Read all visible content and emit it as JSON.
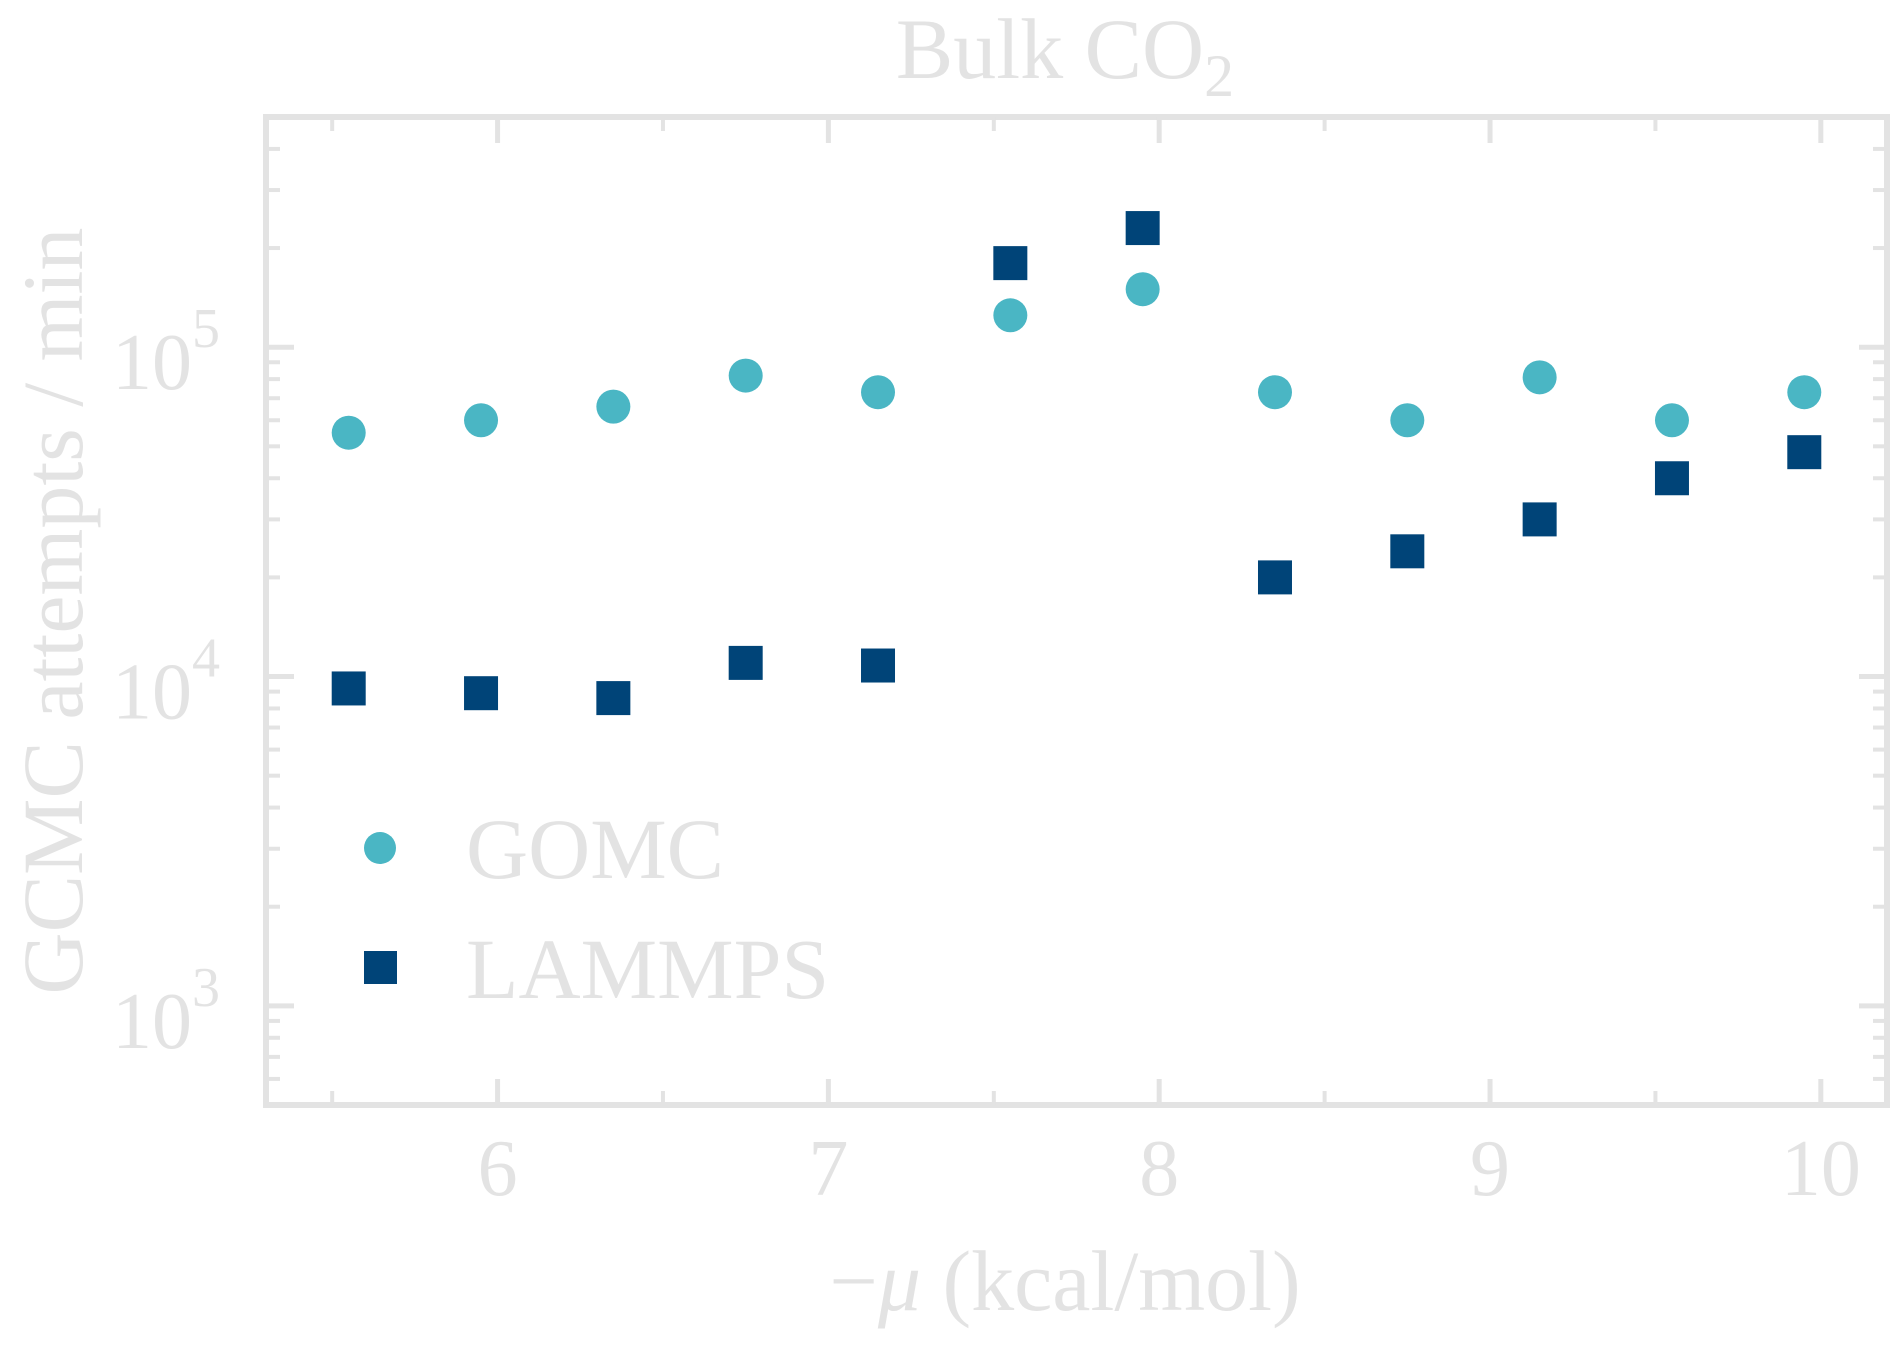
{
  "chart_data": {
    "type": "scatter",
    "title": "Bulk CO",
    "title_subscript": "2",
    "xlabel_prefix": "−",
    "xlabel_symbol": "μ",
    "xlabel_unit": " (kcal/mol)",
    "ylabel": "GCMC attempts / min",
    "xlim": [
      5.3,
      10.2
    ],
    "ylim": [
      500,
      500000
    ],
    "yscale": "log",
    "x_ticks": [
      {
        "value": 6,
        "label": "6"
      },
      {
        "value": 7,
        "label": "7"
      },
      {
        "value": 8,
        "label": "8"
      },
      {
        "value": 9,
        "label": "9"
      },
      {
        "value": 10,
        "label": "10"
      }
    ],
    "y_ticks": [
      {
        "value": 1000,
        "base": "10",
        "exp": "3"
      },
      {
        "value": 10000,
        "base": "10",
        "exp": "4"
      },
      {
        "value": 100000,
        "base": "10",
        "exp": "5"
      }
    ],
    "legend_position": "lower-left",
    "grid": false,
    "colors": {
      "frame": "#e3e3e3",
      "text": "#e3e3e3",
      "gomc": "#4ab6c4",
      "lammps": "#004478"
    },
    "series": [
      {
        "name": "GOMC",
        "marker": "circle",
        "color": "#4ab6c4",
        "x": [
          5.55,
          5.95,
          6.35,
          6.75,
          7.15,
          7.55,
          7.95,
          8.35,
          8.75,
          9.15,
          9.55,
          9.95
        ],
        "y": [
          55000,
          60000,
          66000,
          82000,
          73000,
          125000,
          150000,
          73000,
          60000,
          81000,
          60000,
          73000
        ]
      },
      {
        "name": "LAMMPS",
        "marker": "square",
        "color": "#004478",
        "x": [
          5.55,
          5.95,
          6.35,
          6.75,
          7.15,
          7.55,
          7.95,
          8.35,
          8.75,
          9.15,
          9.55,
          9.95
        ],
        "y": [
          9200,
          8900,
          8600,
          11000,
          10800,
          180000,
          230000,
          20000,
          24000,
          30000,
          40000,
          48000
        ]
      }
    ]
  }
}
